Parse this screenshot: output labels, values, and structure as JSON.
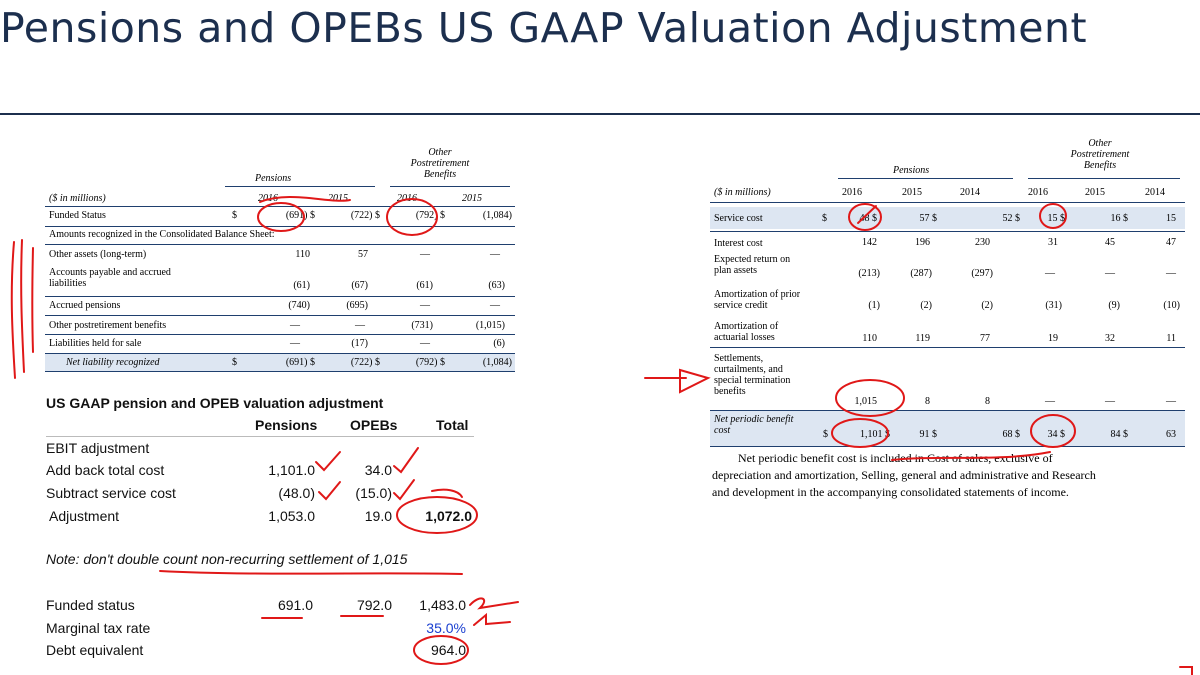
{
  "title": "Pensions and OPEBs US GAAP Valuation Adjustment",
  "left_table": {
    "group_pensions": "Pensions",
    "group_other": [
      "Other",
      "Postretirement",
      "Benefits"
    ],
    "unit": "($ in millions)",
    "years": [
      "2016",
      "2015",
      "2016",
      "2015"
    ],
    "rows": [
      {
        "label": "Funded Status",
        "cells": [
          "$",
          "(691) $",
          "(722) $",
          "(792) $",
          "(1,084)"
        ]
      },
      {
        "label": "Amounts recognized in the Consolidated Balance Sheet:",
        "cells": []
      },
      {
        "label": "Other assets (long-term)",
        "cells": [
          "",
          "110",
          "57",
          "—",
          "—"
        ]
      },
      {
        "label": "Accounts payable and accrued",
        "label2": "liabilities",
        "cells": [
          "",
          "(61)",
          "(67)",
          "(61)",
          "(63)"
        ]
      },
      {
        "label": "Accrued pensions",
        "cells": [
          "",
          "(740)",
          "(695)",
          "—",
          "—"
        ]
      },
      {
        "label": "Other postretirement benefits",
        "cells": [
          "",
          "—",
          "—",
          "(731)",
          "(1,015)"
        ]
      },
      {
        "label": "Liabilities held for sale",
        "cells": [
          "",
          "—",
          "(17)",
          "—",
          "(6)"
        ]
      },
      {
        "label": "Net liability recognized",
        "cells": [
          "$",
          "(691) $",
          "(722) $",
          "(792) $",
          "(1,084)"
        ]
      }
    ]
  },
  "excel": {
    "heading": "US GAAP pension and OPEB valuation adjustment",
    "cols": [
      "Pensions",
      "OPEBs",
      "Total"
    ],
    "rows": [
      {
        "label": "EBIT adjustment",
        "p": "",
        "o": "",
        "t": ""
      },
      {
        "label": "Add back total cost",
        "p": "1,101.0",
        "o": "34.0",
        "t": ""
      },
      {
        "label": "Subtract service cost",
        "p": "(48.0)",
        "o": "(15.0)",
        "t": ""
      },
      {
        "label": "Adjustment",
        "p": "1,053.0",
        "o": "19.0",
        "t": "1,072.0"
      }
    ],
    "note": "Note: don't double count non-recurring settlement of 1,015",
    "rows2": [
      {
        "label": "Funded status",
        "p": "691.0",
        "o": "792.0",
        "t": "1,483.0"
      },
      {
        "label": "Marginal tax rate",
        "p": "",
        "o": "",
        "t": "35.0%"
      },
      {
        "label": "Debt equivalent",
        "p": "",
        "o": "",
        "t": "964.0"
      }
    ]
  },
  "right_table": {
    "group_pensions": "Pensions",
    "group_other": [
      "Other",
      "Postretirement",
      "Benefits"
    ],
    "unit": "($ in millions)",
    "years": [
      "2016",
      "2015",
      "2014",
      "2016",
      "2015",
      "2014"
    ],
    "rows": [
      {
        "label": "Service cost",
        "cells": [
          "$",
          "48 $",
          "57 $",
          "52 $",
          "15 $",
          "16 $",
          "15"
        ]
      },
      {
        "label": "Interest cost",
        "cells": [
          "",
          "142",
          "196",
          "230",
          "31",
          "45",
          "47"
        ]
      },
      {
        "label": "Expected return on",
        "label2": "plan assets",
        "cells": [
          "",
          "(213)",
          "(287)",
          "(297)",
          "—",
          "—",
          "—"
        ]
      },
      {
        "label": "Amortization of prior",
        "label2": "service credit",
        "cells": [
          "",
          "(1)",
          "(2)",
          "(2)",
          "(31)",
          "(9)",
          "(10)"
        ]
      },
      {
        "label": "Amortization of",
        "label2": "actuarial losses",
        "cells": [
          "",
          "110",
          "119",
          "77",
          "19",
          "32",
          "11"
        ]
      },
      {
        "label": "Settlements,",
        "label2": "curtailments, and",
        "label3": "special termination",
        "label4": "benefits",
        "cells": [
          "",
          "1,015",
          "8",
          "8",
          "—",
          "—",
          "—"
        ]
      },
      {
        "label": "Net periodic benefit",
        "label2": "cost",
        "cells": [
          "$",
          "1,101 $",
          "91 $",
          "68 $",
          "34 $",
          "84 $",
          "63"
        ]
      }
    ],
    "footnote": [
      "Net periodic benefit cost is included in Cost of sales, exclusive of",
      "depreciation and amortization, Selling, general and administrative and Research",
      "and development in the accompanying consolidated statements of income."
    ]
  },
  "colors": {
    "title": "#1c2f4e",
    "annotation": "#e01818",
    "highlight": "#dde6f2",
    "rate": "#1a3fd0"
  }
}
